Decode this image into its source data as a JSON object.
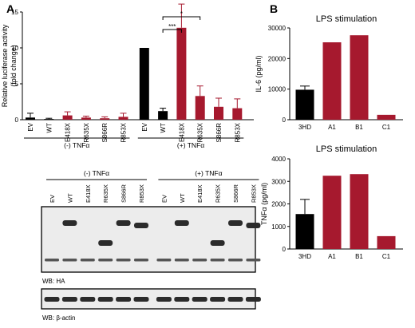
{
  "panels": {
    "a": "A",
    "b": "B"
  },
  "colors": {
    "black_bar": "#000000",
    "red_bar": "#a6192e",
    "blot_bg": "#ececec",
    "band": "#2b2b2b"
  },
  "chart_data": [
    {
      "id": "luciferase",
      "type": "bar",
      "title": "",
      "ylabel": "Relative luciferase activity (fold change)",
      "ylabel_lines": [
        "Relative luciferase activity",
        "(fold change)"
      ],
      "ylim": [
        0,
        15
      ],
      "yticks": [
        0,
        5,
        10,
        15
      ],
      "categories": [
        "EV",
        "WT",
        "E418X",
        "R635X",
        "S866R",
        "R853X",
        "EV",
        "WT",
        "E418X",
        "R635X",
        "S866R",
        "R853X"
      ],
      "values": [
        0.3,
        0.1,
        0.6,
        0.3,
        0.2,
        0.4,
        10.0,
        1.2,
        12.8,
        3.3,
        1.8,
        1.6
      ],
      "errors": [
        0.6,
        0.1,
        0.5,
        0.2,
        0.2,
        0.5,
        0.0,
        0.4,
        3.3,
        1.4,
        1.2,
        1.3
      ],
      "bar_colors": [
        "black",
        "black",
        "red",
        "red",
        "red",
        "red",
        "black",
        "black",
        "red",
        "red",
        "red",
        "red"
      ],
      "groups": [
        {
          "label": "(-) TNFα",
          "from": 0,
          "to": 5
        },
        {
          "label": "(+) TNFα",
          "from": 6,
          "to": 11
        }
      ],
      "significance": [
        {
          "from": 7,
          "to": 8,
          "label": "***"
        },
        {
          "from": 7,
          "to": 9,
          "label": "*"
        }
      ],
      "grid": false
    },
    {
      "id": "il6",
      "type": "bar",
      "title": "LPS stimulation",
      "ylabel": "IL-6 (pg/ml)",
      "ylim": [
        0,
        30000
      ],
      "yticks": [
        0,
        10000,
        20000,
        30000
      ],
      "categories": [
        "3HD",
        "A1",
        "B1",
        "C1"
      ],
      "values": [
        9800,
        25300,
        27600,
        1600
      ],
      "errors": [
        1200,
        0,
        0,
        0
      ],
      "bar_colors": [
        "black",
        "red",
        "red",
        "red"
      ],
      "grid": false
    },
    {
      "id": "tnfa",
      "type": "bar",
      "title": "LPS stimulation",
      "ylabel": "TNFα (pg/ml)",
      "ylim": [
        0,
        4000
      ],
      "yticks": [
        0,
        1000,
        2000,
        3000,
        4000
      ],
      "categories": [
        "3HD",
        "A1",
        "B1",
        "C1"
      ],
      "values": [
        1550,
        3250,
        3320,
        570
      ],
      "errors": [
        650,
        0,
        0,
        0
      ],
      "bar_colors": [
        "black",
        "red",
        "red",
        "red"
      ],
      "grid": false
    }
  ],
  "blot": {
    "groups": [
      {
        "label": "(-) TNFα",
        "from": 0,
        "to": 5
      },
      {
        "label": "(+) TNFα",
        "from": 6,
        "to": 11
      }
    ],
    "lanes": [
      "EV",
      "WT",
      "E418X",
      "R635X",
      "S866R",
      "R853X",
      "EV",
      "WT",
      "E418X",
      "R635X",
      "S866R",
      "R853X"
    ],
    "ha_label": "WB: HA",
    "actin_label": "WB: β-actin"
  }
}
